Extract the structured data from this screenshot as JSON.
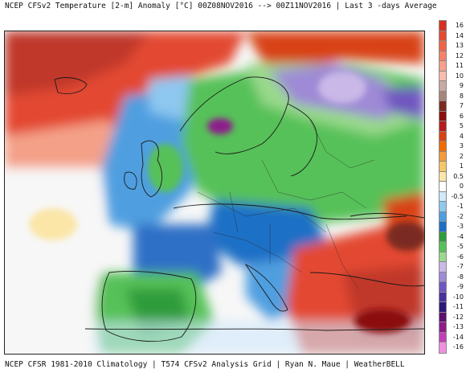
{
  "header": {
    "title": "NCEP CFSv2 Temperature [2-m] Anomaly  [°C] 00Z08NOV2016 --> 00Z11NOV2016 | Last 3 -days Average"
  },
  "footer": {
    "text": "CFSR 1981-2010 Climatology | T574 CFSv2 Analysis Grid | Ryan N. Maue | WeatherBELL"
  },
  "map": {
    "region": "Europe",
    "field": "2-m temperature anomaly",
    "dominant_pattern": "cold anomalies over most of Europe and Scandinavia; warm anomalies over the North Atlantic, Turkey and eastern Mediterranean"
  },
  "colorbar": {
    "labels": [
      "16",
      "14",
      "13",
      "12",
      "11",
      "10",
      "9",
      "8",
      "7",
      "6",
      "5",
      "4",
      "3",
      "2",
      "1",
      "0.5",
      "0",
      "-0.5",
      "-1",
      "-2",
      "-3",
      "-4",
      "-5",
      "-6",
      "-7",
      "-8",
      "-9",
      "-10",
      "-11",
      "-12",
      "-13",
      "-14",
      "-16"
    ],
    "colors": [
      "#d7301f",
      "#e34a33",
      "#ef6548",
      "#f4826b",
      "#f7a08c",
      "#f9bcae",
      "#c9a9a3",
      "#a88479",
      "#7a2b20",
      "#8b0f0f",
      "#b71c1c",
      "#d84315",
      "#ef6c00",
      "#f59a3a",
      "#f7c56a",
      "#fbe6a8",
      "#ffffff",
      "#cfe8fb",
      "#8ec7f0",
      "#4f9fe0",
      "#1f6fc6",
      "#2e9c3a",
      "#57c158",
      "#9ad98c",
      "#c9b8e8",
      "#9e8ad6",
      "#6f56c0",
      "#4a2f9e",
      "#2c1678",
      "#5b0f6e",
      "#8e1a8a",
      "#c23fb8",
      "#f08fe0"
    ]
  }
}
